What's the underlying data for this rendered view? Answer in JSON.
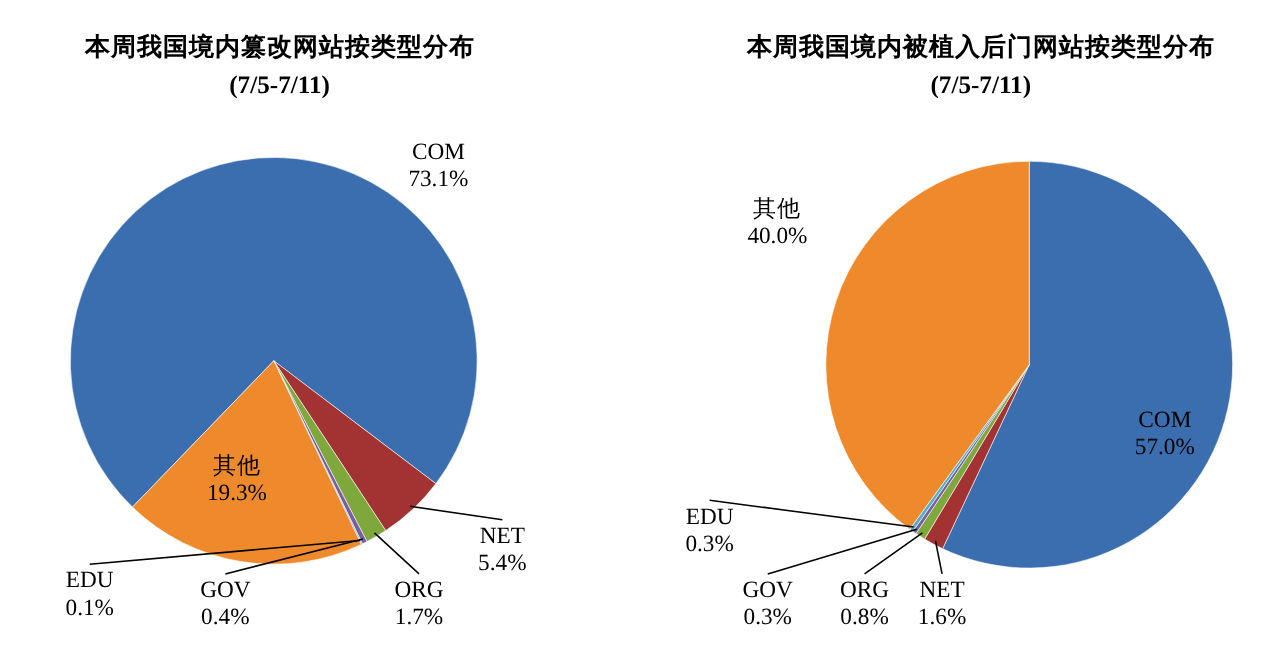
{
  "chart_data": [
    {
      "type": "pie",
      "title": "本周我国境内篡改网站按类型分布",
      "subtitle": "(7/5-7/11)",
      "categories": [
        "COM",
        "NET",
        "ORG",
        "GOV",
        "EDU",
        "其他"
      ],
      "values": [
        73.1,
        5.4,
        1.7,
        0.4,
        0.1,
        19.3
      ],
      "value_labels": [
        "73.1%",
        "5.4%",
        "1.7%",
        "0.4%",
        "0.1%",
        "19.3%"
      ],
      "colors": [
        "#3b6eaf",
        "#a33232",
        "#7fa83c",
        "#7b5ba1",
        "#4fb1c8",
        "#ef8a2c"
      ]
    },
    {
      "type": "pie",
      "title": "本周我国境内被植入后门网站按类型分布",
      "subtitle": "(7/5-7/11)",
      "categories": [
        "COM",
        "NET",
        "ORG",
        "GOV",
        "EDU",
        "其他"
      ],
      "values": [
        57.0,
        1.6,
        0.8,
        0.3,
        0.3,
        40.0
      ],
      "value_labels": [
        "57.0%",
        "1.6%",
        "0.8%",
        "0.3%",
        "0.3%",
        "40.0%"
      ],
      "colors": [
        "#3b6eaf",
        "#a33232",
        "#7fa83c",
        "#7b5ba1",
        "#4fb1c8",
        "#ef8a2c"
      ]
    }
  ]
}
